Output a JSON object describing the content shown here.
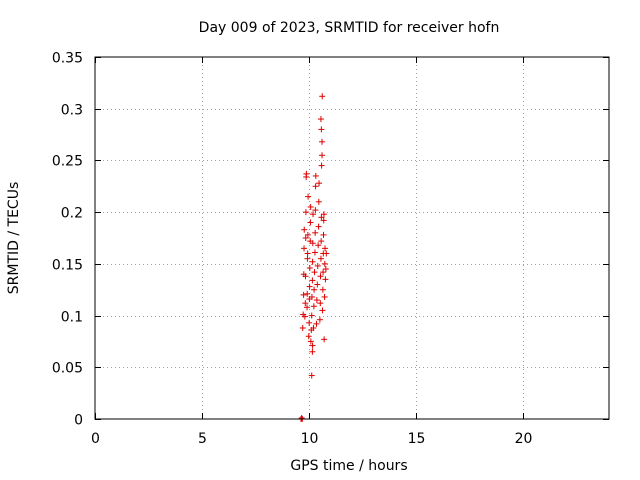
{
  "chart_data": {
    "type": "scatter",
    "title": "Day 009 of 2023, SRMTID for receiver hofn",
    "xlabel": "GPS time / hours",
    "ylabel": "SRMTID / TECUs",
    "xlim": [
      0,
      24
    ],
    "ylim": [
      0,
      0.35
    ],
    "xticks": [
      0,
      5,
      10,
      15,
      20
    ],
    "xtick_labels": [
      "0",
      "5",
      "10",
      "15",
      "20"
    ],
    "yticks": [
      0,
      0.05,
      0.1,
      0.15,
      0.2,
      0.25,
      0.3,
      0.35
    ],
    "ytick_labels": [
      "0",
      "0.05",
      "0.1",
      "0.15",
      "0.2",
      "0.25",
      "0.3",
      "0.35"
    ],
    "grid": true,
    "marker": "plus",
    "color": "#dd0000",
    "series": [
      {
        "name": "SRMTID",
        "points": [
          [
            9.62,
            0.0
          ],
          [
            9.65,
            0.001
          ],
          [
            9.68,
            0.0
          ],
          [
            9.7,
            0.088
          ],
          [
            9.72,
            0.101
          ],
          [
            9.74,
            0.12
          ],
          [
            9.75,
            0.14
          ],
          [
            9.76,
            0.165
          ],
          [
            9.77,
            0.183
          ],
          [
            9.8,
            0.099
          ],
          [
            9.82,
            0.112
          ],
          [
            9.83,
            0.138
          ],
          [
            9.84,
            0.175
          ],
          [
            9.85,
            0.2
          ],
          [
            9.86,
            0.234
          ],
          [
            9.87,
            0.237
          ],
          [
            9.9,
            0.108
          ],
          [
            9.91,
            0.121
          ],
          [
            9.92,
            0.155
          ],
          [
            9.93,
            0.16
          ],
          [
            9.94,
            0.178
          ],
          [
            9.95,
            0.215
          ],
          [
            9.98,
            0.08
          ],
          [
            10.0,
            0.093
          ],
          [
            10.01,
            0.116
          ],
          [
            10.02,
            0.128
          ],
          [
            10.03,
            0.146
          ],
          [
            10.05,
            0.172
          ],
          [
            10.06,
            0.19
          ],
          [
            10.07,
            0.205
          ],
          [
            10.08,
            0.075
          ],
          [
            10.1,
            0.086
          ],
          [
            10.12,
            0.1
          ],
          [
            10.13,
            0.118
          ],
          [
            10.15,
            0.134
          ],
          [
            10.16,
            0.152
          ],
          [
            10.17,
            0.17
          ],
          [
            10.18,
            0.198
          ],
          [
            10.12,
            0.042
          ],
          [
            10.15,
            0.065
          ],
          [
            10.16,
            0.071
          ],
          [
            10.2,
            0.088
          ],
          [
            10.22,
            0.109
          ],
          [
            10.23,
            0.125
          ],
          [
            10.25,
            0.142
          ],
          [
            10.27,
            0.161
          ],
          [
            10.28,
            0.18
          ],
          [
            10.29,
            0.202
          ],
          [
            10.3,
            0.225
          ],
          [
            10.31,
            0.235
          ],
          [
            10.34,
            0.092
          ],
          [
            10.36,
            0.115
          ],
          [
            10.38,
            0.13
          ],
          [
            10.4,
            0.148
          ],
          [
            10.42,
            0.168
          ],
          [
            10.44,
            0.186
          ],
          [
            10.45,
            0.21
          ],
          [
            10.46,
            0.228
          ],
          [
            10.5,
            0.096
          ],
          [
            10.52,
            0.112
          ],
          [
            10.53,
            0.138
          ],
          [
            10.55,
            0.155
          ],
          [
            10.56,
            0.172
          ],
          [
            10.57,
            0.195
          ],
          [
            10.58,
            0.245
          ],
          [
            10.6,
            0.255
          ],
          [
            10.55,
            0.29
          ],
          [
            10.57,
            0.28
          ],
          [
            10.6,
            0.268
          ],
          [
            10.61,
            0.312
          ],
          [
            10.62,
            0.105
          ],
          [
            10.64,
            0.125
          ],
          [
            10.65,
            0.142
          ],
          [
            10.66,
            0.16
          ],
          [
            10.67,
            0.178
          ],
          [
            10.68,
            0.192
          ],
          [
            10.69,
            0.198
          ],
          [
            10.7,
            0.077
          ],
          [
            10.72,
            0.118
          ],
          [
            10.73,
            0.15
          ],
          [
            10.74,
            0.165
          ],
          [
            10.76,
            0.135
          ],
          [
            10.78,
            0.145
          ],
          [
            10.8,
            0.16
          ]
        ]
      }
    ]
  }
}
